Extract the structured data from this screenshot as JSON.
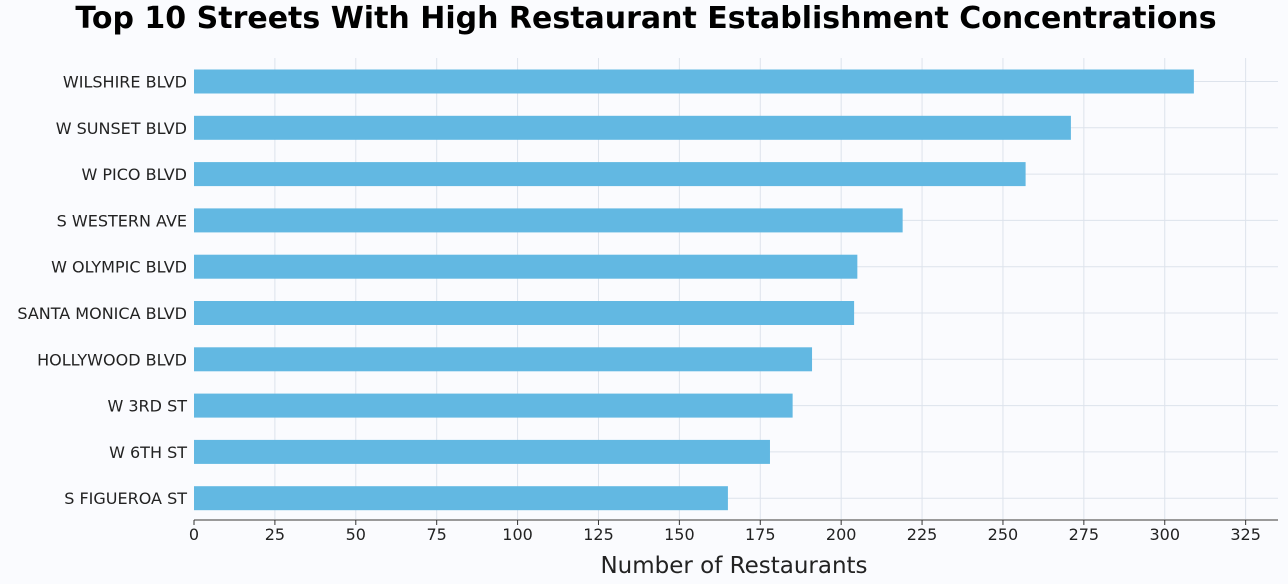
{
  "chart_data": {
    "type": "bar",
    "orientation": "horizontal",
    "title": "Top 10 Streets With High Restaurant Establishment Concentrations",
    "xlabel": "Number of Restaurants",
    "ylabel": "",
    "categories": [
      "WILSHIRE BLVD",
      "W SUNSET BLVD",
      "W PICO BLVD",
      "S WESTERN AVE",
      "W OLYMPIC BLVD",
      "SANTA MONICA BLVD",
      "HOLLYWOOD BLVD",
      "W 3RD ST",
      "W 6TH ST",
      "S FIGUEROA ST"
    ],
    "values": [
      309,
      271,
      257,
      219,
      205,
      204,
      191,
      185,
      178,
      165
    ],
    "xlim": [
      0,
      335
    ],
    "xticks": [
      0,
      25,
      50,
      75,
      100,
      125,
      150,
      175,
      200,
      225,
      250,
      275,
      300,
      325
    ],
    "grid": true,
    "bar_color": "#62b8e2",
    "grid_color": "#dde3ec",
    "axis_color": "#9a9a9a"
  }
}
